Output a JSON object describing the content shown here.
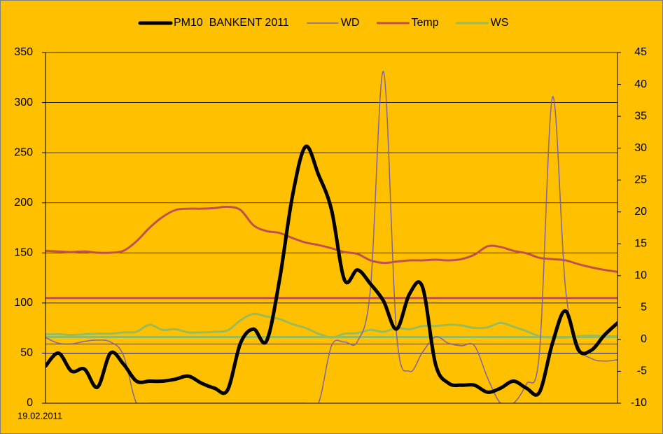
{
  "chart_data": {
    "type": "line",
    "categories": [
      "19.02.2011",
      null,
      null,
      null,
      null,
      null,
      null,
      null,
      null,
      null,
      null,
      null,
      null,
      null,
      null,
      null,
      null,
      null,
      null,
      null,
      null,
      null,
      null,
      null,
      null,
      null,
      null,
      null,
      null,
      null,
      null,
      null,
      null,
      null,
      null,
      null,
      null,
      null,
      null,
      null,
      null,
      null,
      null,
      null,
      null
    ],
    "ylim": [
      0,
      350
    ],
    "yticks": [
      0,
      50,
      100,
      150,
      200,
      250,
      300,
      350
    ],
    "y2lim": [
      -10,
      45
    ],
    "y2ticks": [
      -10,
      -5,
      0,
      5,
      10,
      15,
      20,
      25,
      30,
      35,
      40,
      45
    ],
    "grid": true,
    "legend": "top",
    "series": [
      {
        "name": "PM10  BANKENT 2011",
        "color": "#000000",
        "values": [
          37,
          50,
          32,
          34,
          16,
          50,
          39,
          22,
          22,
          22,
          24,
          27,
          20,
          15,
          13,
          60,
          74,
          62,
          123,
          207,
          256,
          228,
          193,
          123,
          133,
          119,
          102,
          74,
          109,
          116,
          39,
          20,
          18,
          18,
          11,
          15,
          22,
          15,
          11,
          60,
          92,
          53,
          53,
          68,
          80
        ]
      },
      {
        "name": "WD",
        "color": "#8064a2",
        "axis": "y2",
        "values": [
          0.3,
          -0.6,
          -0.7,
          -0.3,
          -0.1,
          -0.4,
          -2.5,
          -10,
          -10,
          -10,
          -10,
          -10,
          -10,
          -10,
          -10,
          -10,
          -10,
          -10,
          -10,
          -10,
          -10,
          -10,
          -1,
          -0.4,
          -0.3,
          8,
          42,
          1,
          -5,
          -2,
          0.4,
          -0.6,
          -1,
          -1,
          -6,
          -10,
          -10,
          -7,
          -2,
          38,
          8,
          -1,
          -3,
          -3.4,
          -3.2
        ]
      },
      {
        "name": "Temp",
        "color": "#c0504d",
        "axis": "y2",
        "values": [
          13.9,
          13.8,
          13.7,
          13.8,
          13.6,
          13.6,
          13.9,
          15.4,
          17.5,
          19.2,
          20.3,
          20.5,
          20.5,
          20.6,
          20.8,
          20.3,
          17.9,
          17.0,
          16.7,
          15.9,
          15.2,
          14.8,
          14.3,
          13.7,
          13.4,
          12.4,
          12.0,
          12.2,
          12.4,
          12.4,
          12.5,
          12.4,
          12.6,
          13.3,
          14.6,
          14.5,
          13.9,
          13.5,
          12.8,
          12.6,
          12.4,
          11.8,
          11.3,
          10.9,
          10.6
        ]
      },
      {
        "name": "WS",
        "color": "#9bbb59",
        "axis": "y2",
        "values": [
          0.8,
          0.8,
          0.7,
          0.8,
          0.9,
          0.9,
          1.1,
          1.2,
          2.3,
          1.5,
          1.6,
          1.1,
          1.1,
          1.2,
          1.4,
          3.0,
          4.0,
          3.6,
          3.2,
          2.4,
          1.8,
          0.9,
          0.3,
          0.9,
          1.0,
          1.5,
          1.2,
          1.8,
          1.6,
          2.1,
          2.1,
          2.3,
          2.2,
          1.8,
          1.9,
          2.6,
          2.0,
          1.3,
          0.5,
          0.3,
          0.3,
          0.5,
          0.6,
          0.5,
          0.5
        ]
      }
    ],
    "reference_lines": [
      {
        "value": 105,
        "color": "#c0504d"
      },
      {
        "value": 66,
        "color": "#9bbb59"
      },
      {
        "value": 59,
        "color": "#8064a2"
      }
    ]
  }
}
